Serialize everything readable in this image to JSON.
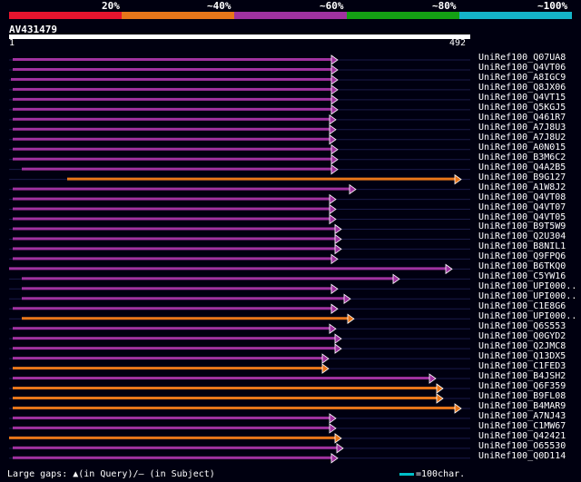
{
  "legend": {
    "labels": [
      "20%",
      "~40%",
      "~60%",
      "~80%",
      "~100%"
    ],
    "colors": [
      "#e8142e",
      "#e8761a",
      "#a032a0",
      "#14a014",
      "#14b4c8"
    ]
  },
  "query": {
    "name": "AV431479",
    "start": "1",
    "end": "492"
  },
  "hits": [
    {
      "name": "UniRef100_Q07UA8",
      "color": "#a032a0"
    },
    {
      "name": "UniRef100_Q4VT06",
      "color": "#a032a0"
    },
    {
      "name": "UniRef100_A8IGC9",
      "color": "#a032a0"
    },
    {
      "name": "UniRef100_Q8JX06",
      "color": "#a032a0"
    },
    {
      "name": "UniRef100_Q4VT15",
      "color": "#a032a0"
    },
    {
      "name": "UniRef100_Q5KGJ5",
      "color": "#a032a0"
    },
    {
      "name": "UniRef100_Q461R7",
      "color": "#a032a0"
    },
    {
      "name": "UniRef100_A7J8U3",
      "color": "#a032a0"
    },
    {
      "name": "UniRef100_A7J8U2",
      "color": "#a032a0"
    },
    {
      "name": "UniRef100_A0N015",
      "color": "#a032a0"
    },
    {
      "name": "UniRef100_B3M6C2",
      "color": "#a032a0"
    },
    {
      "name": "UniRef100_Q4A2B5",
      "color": "#a032a0"
    },
    {
      "name": "UniRef100_B9G127",
      "color": "#e8761a"
    },
    {
      "name": "UniRef100_A1W8J2",
      "color": "#a032a0"
    },
    {
      "name": "UniRef100_Q4VT08",
      "color": "#a032a0"
    },
    {
      "name": "UniRef100_Q4VT07",
      "color": "#a032a0"
    },
    {
      "name": "UniRef100_Q4VT05",
      "color": "#a032a0"
    },
    {
      "name": "UniRef100_B9T5W9",
      "color": "#a032a0"
    },
    {
      "name": "UniRef100_Q2U304",
      "color": "#a032a0"
    },
    {
      "name": "UniRef100_B8NIL1",
      "color": "#a032a0"
    },
    {
      "name": "UniRef100_Q9FPQ6",
      "color": "#a032a0"
    },
    {
      "name": "UniRef100_B6TKQ0",
      "color": "#a032a0"
    },
    {
      "name": "UniRef100_C5YW16",
      "color": "#a032a0"
    },
    {
      "name": "UniRef100_UPI000..",
      "color": "#a032a0"
    },
    {
      "name": "UniRef100_UPI000..",
      "color": "#a032a0"
    },
    {
      "name": "UniRef100_C1E8G6",
      "color": "#a032a0"
    },
    {
      "name": "UniRef100_UPI000..",
      "color": "#e8761a"
    },
    {
      "name": "UniRef100_Q6S553",
      "color": "#a032a0"
    },
    {
      "name": "UniRef100_Q0GYD2",
      "color": "#a032a0"
    },
    {
      "name": "UniRef100_Q2JMC8",
      "color": "#a032a0"
    },
    {
      "name": "UniRef100_Q13DX5",
      "color": "#a032a0"
    },
    {
      "name": "UniRef100_C1FED3",
      "color": "#e8761a"
    },
    {
      "name": "UniRef100_B4JSH2",
      "color": "#a032a0"
    },
    {
      "name": "UniRef100_Q6F359",
      "color": "#e8761a"
    },
    {
      "name": "UniRef100_B9FL08",
      "color": "#e8761a"
    },
    {
      "name": "UniRef100_B4MAR9",
      "color": "#e8761a"
    },
    {
      "name": "UniRef100_A7NJ43",
      "color": "#a032a0"
    },
    {
      "name": "UniRef100_C1MW67",
      "color": "#a032a0"
    },
    {
      "name": "UniRef100_Q42421",
      "color": "#e8761a"
    },
    {
      "name": "UniRef100_O65530",
      "color": "#a032a0"
    },
    {
      "name": "UniRef100_Q0D114",
      "color": "#a032a0"
    }
  ],
  "footer": {
    "gaps_text": "Large gaps: ▲(in Query)/– (in Subject)",
    "scale_text": "=100char."
  }
}
